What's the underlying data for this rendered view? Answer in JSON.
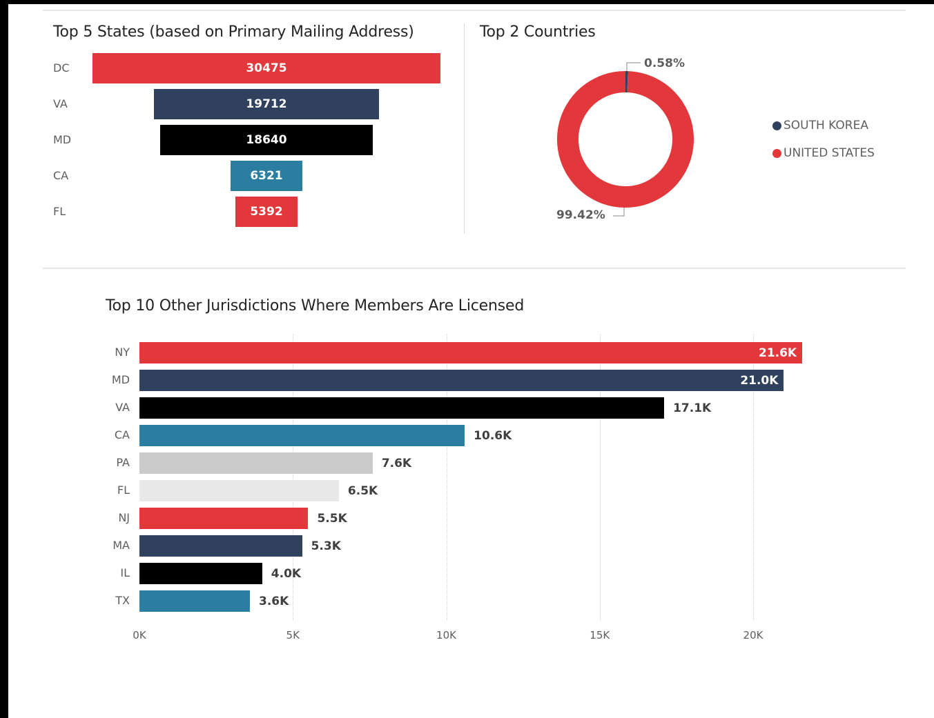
{
  "chart_data": [
    {
      "type": "funnel",
      "title": "Top 5 States (based on Primary Mailing Address)",
      "categories": [
        "DC",
        "VA",
        "MD",
        "CA",
        "FL"
      ],
      "values": [
        30475,
        19712,
        18640,
        6321,
        5392
      ],
      "labels": [
        "30475",
        "19712",
        "18640",
        "6321",
        "5392"
      ],
      "colors": [
        "#e3383b",
        "#2f415d",
        "#000000",
        "#2c7ea1",
        "#e3383b"
      ]
    },
    {
      "type": "pie",
      "donut": true,
      "title": "Top 2 Countries",
      "categories": [
        "SOUTH KOREA",
        "UNITED STATES"
      ],
      "values": [
        0.58,
        99.42
      ],
      "labels": [
        "0.58%",
        "99.42%"
      ],
      "colors": [
        "#2f415d",
        "#e3383b"
      ],
      "legend": "right"
    },
    {
      "type": "bar",
      "orientation": "horizontal",
      "title": "Top 10 Other Jurisdictions Where Members Are Licensed",
      "categories": [
        "NY",
        "MD",
        "VA",
        "CA",
        "PA",
        "FL",
        "NJ",
        "MA",
        "IL",
        "TX"
      ],
      "values": [
        21600,
        21000,
        17100,
        10600,
        7600,
        6500,
        5500,
        5300,
        4000,
        3600
      ],
      "labels": [
        "21.6K",
        "21.0K",
        "17.1K",
        "10.6K",
        "7.6K",
        "6.5K",
        "5.5K",
        "5.3K",
        "4.0K",
        "3.6K"
      ],
      "colors": [
        "#e3383b",
        "#2f415d",
        "#000000",
        "#2c7ea1",
        "#cbcacb",
        "#e9e8e9",
        "#e3383b",
        "#2f415d",
        "#000000",
        "#2c7ea1"
      ],
      "xticks": [
        "0K",
        "5K",
        "10K",
        "15K",
        "20K"
      ],
      "xlim": [
        0,
        21600
      ],
      "grid": true
    }
  ]
}
